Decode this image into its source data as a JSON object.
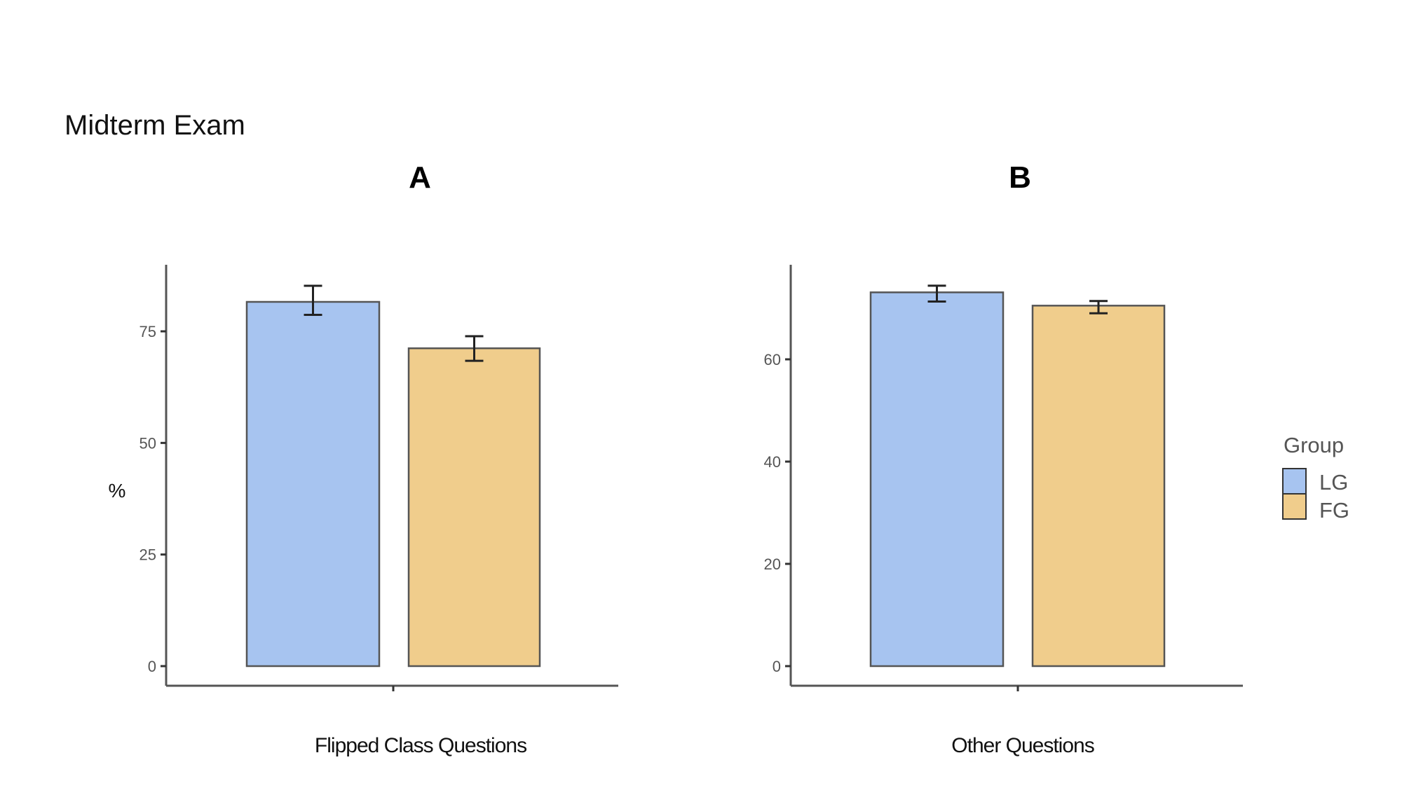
{
  "chart_data": [
    {
      "type": "bar",
      "figure_title": "Midterm Exam",
      "title": "A",
      "xlabel": "Flipped Class Questions",
      "ylabel": "%",
      "yticks": [
        0,
        25,
        50,
        75
      ],
      "ylim": [
        0,
        86
      ],
      "categories": [
        "LG",
        "FG"
      ],
      "values": [
        81.6,
        71.2
      ],
      "error_low": [
        78.7,
        68.4
      ],
      "error_high": [
        85.2,
        73.9
      ]
    },
    {
      "type": "bar",
      "title": "B",
      "xlabel": "Other Questions",
      "ylabel": "",
      "yticks": [
        0,
        20,
        40,
        60
      ],
      "ylim": [
        0,
        76
      ],
      "categories": [
        "LG",
        "FG"
      ],
      "values": [
        73.1,
        70.5
      ],
      "error_low": [
        71.3,
        69.0
      ],
      "error_high": [
        74.4,
        71.4
      ]
    }
  ],
  "legend": {
    "title": "Group",
    "placement": "right",
    "items": [
      {
        "label": "LG",
        "color": "#a7c4f0"
      },
      {
        "label": "FG",
        "color": "#f0cd8c"
      }
    ]
  }
}
